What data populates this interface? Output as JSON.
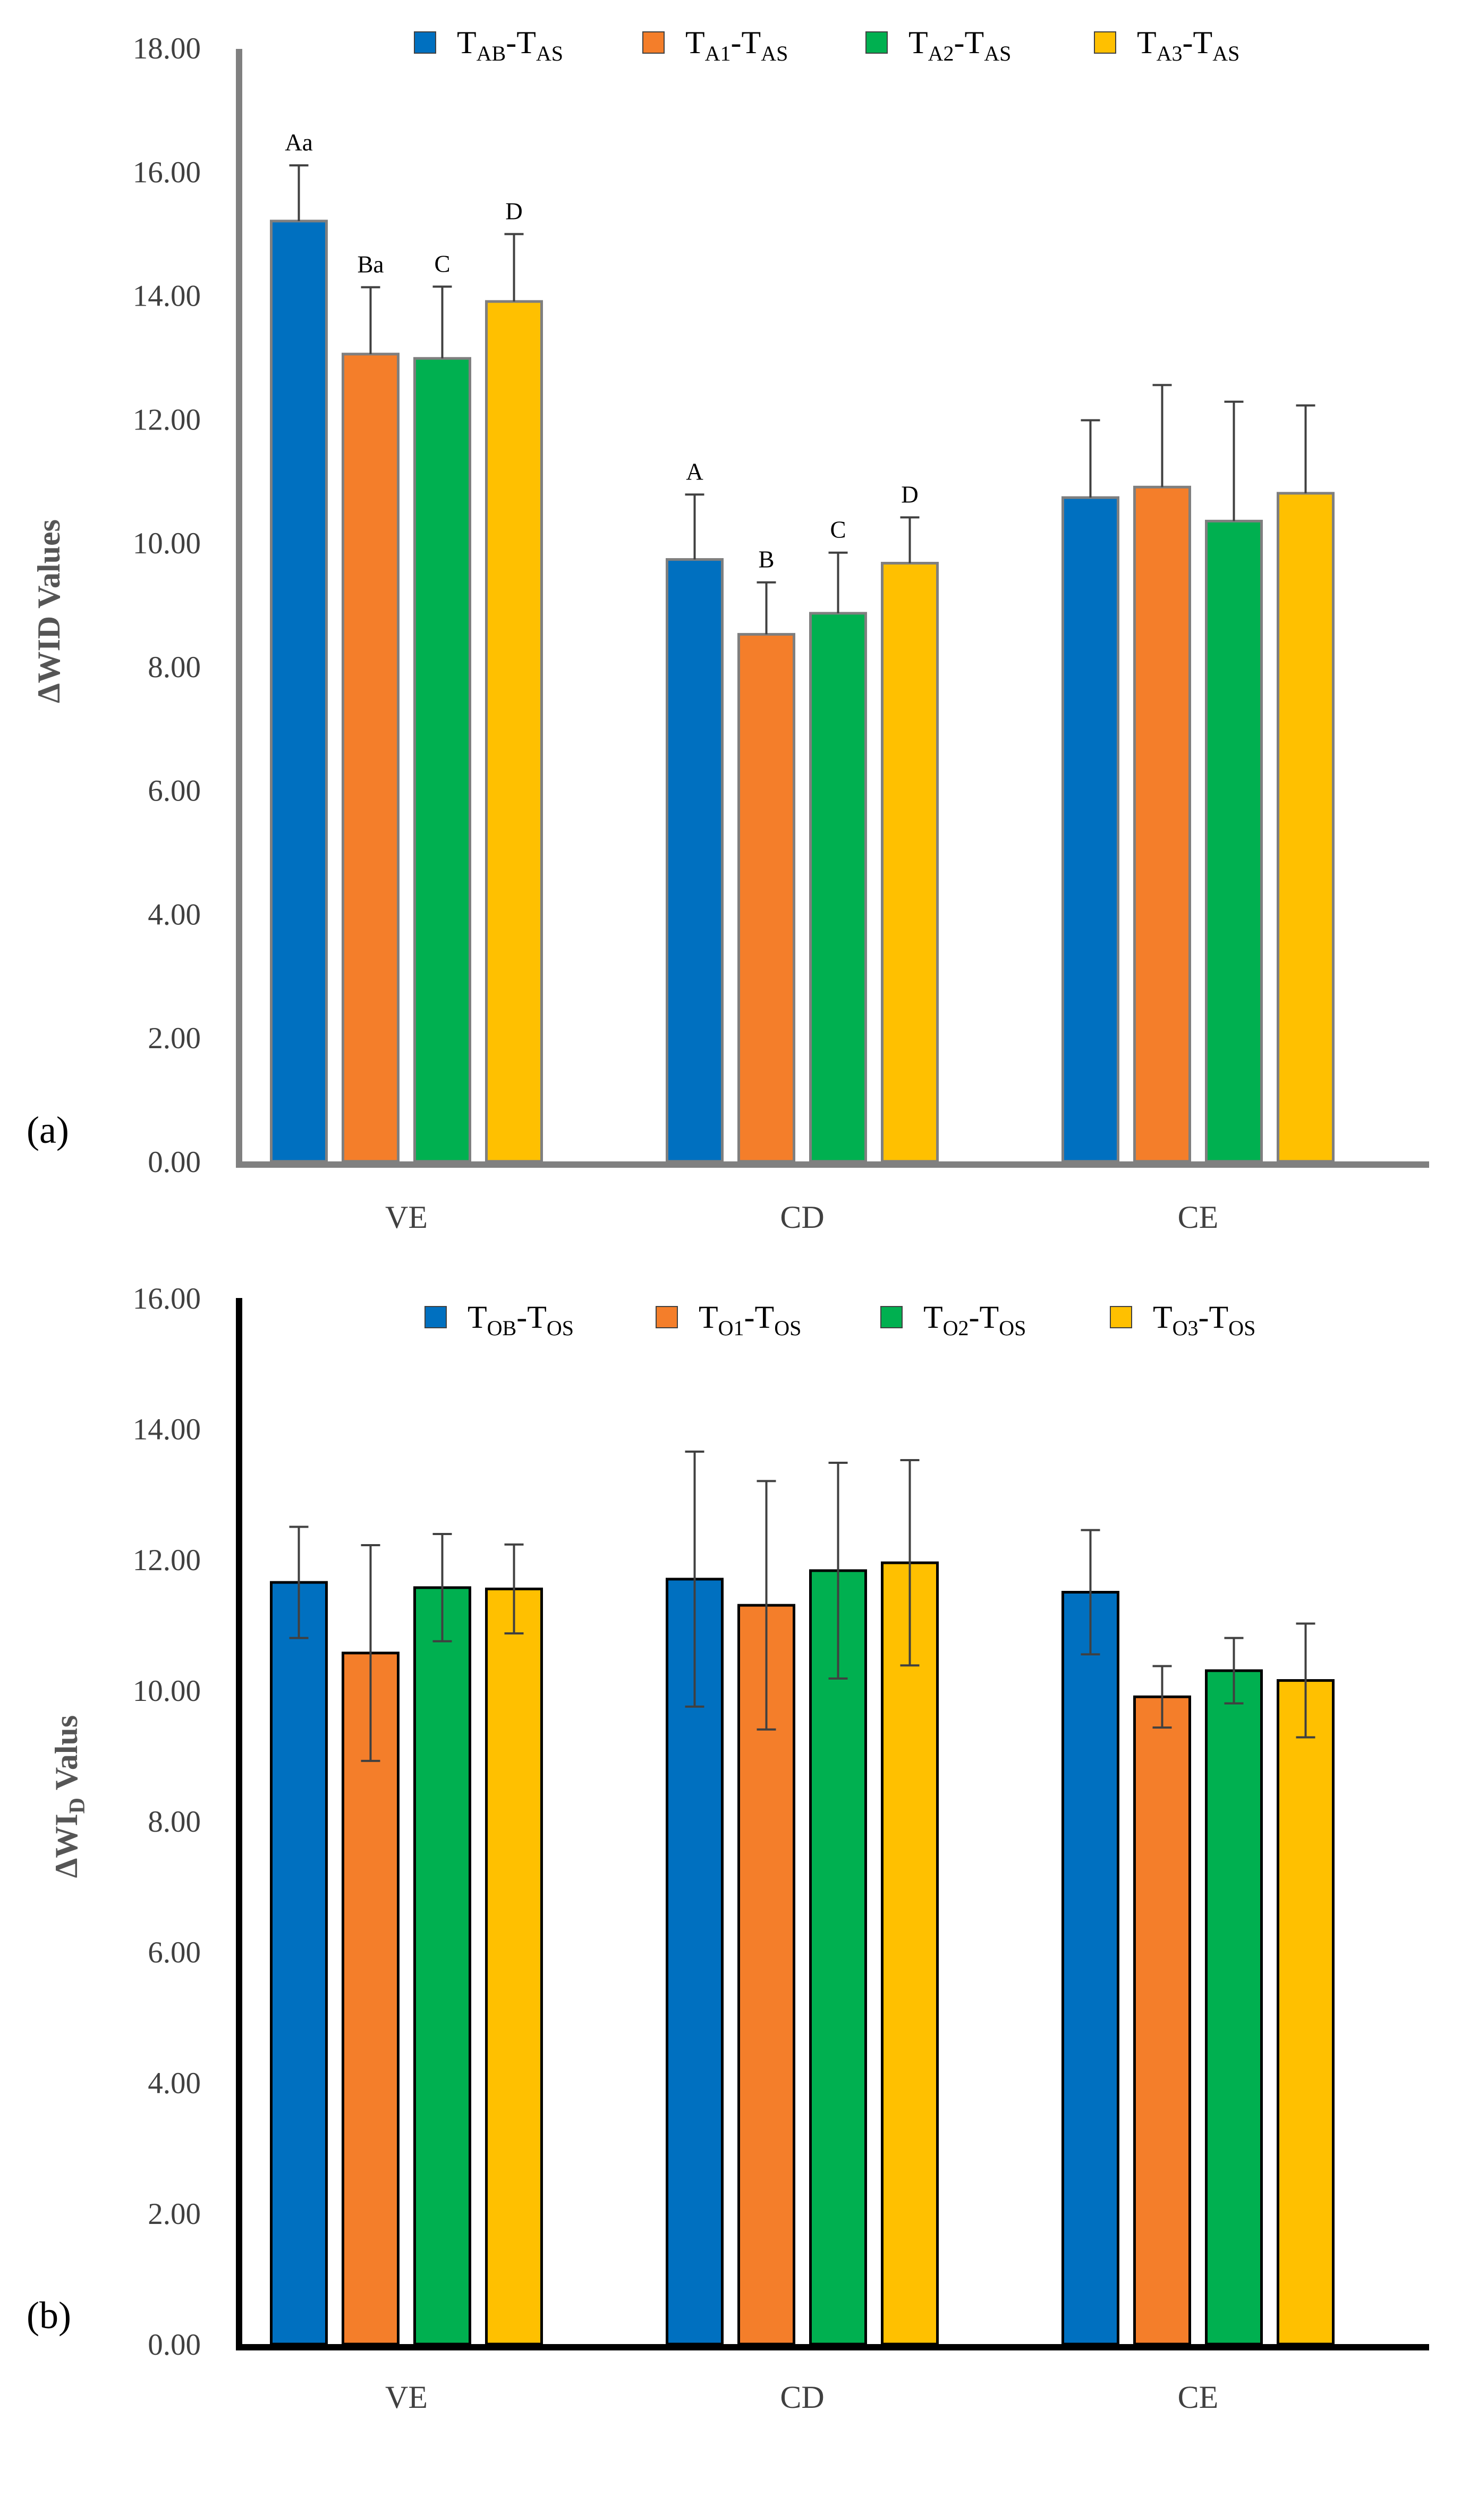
{
  "colors": {
    "blue": "#0070c0",
    "orange": "#f47e2a",
    "green": "#00b050",
    "yellow": "#ffc000"
  },
  "chart_data": [
    {
      "type": "bar",
      "panel_label": "(a)",
      "ylabel": "ΔWID Values",
      "ylim": [
        0,
        18
      ],
      "ytick_step": 2,
      "yticks": [
        "0.00",
        "2.00",
        "4.00",
        "6.00",
        "8.00",
        "10.00",
        "12.00",
        "14.00",
        "16.00",
        "18.00"
      ],
      "categories": [
        "VE",
        "CD",
        "CE"
      ],
      "legend_position": "top-center",
      "series": [
        {
          "name": "TAB-TAS",
          "name_main": "T",
          "name_sub": "AB",
          "name_mid": "-T",
          "name_sub2": "AS",
          "color": "#0070c0",
          "values": [
            15.2,
            9.73,
            10.73
          ],
          "errors": [
            0.9,
            1.05,
            1.25
          ],
          "annotations": [
            "Aa",
            "A",
            ""
          ]
        },
        {
          "name": "TA1-TAS",
          "name_main": "T",
          "name_sub": "A1",
          "name_mid": "-T",
          "name_sub2": "AS",
          "color": "#f47e2a",
          "values": [
            13.05,
            8.52,
            10.9
          ],
          "errors": [
            1.08,
            0.84,
            1.65
          ],
          "annotations": [
            "Ba",
            "B",
            ""
          ]
        },
        {
          "name": "TA2-TAS",
          "name_main": "T",
          "name_sub": "A2",
          "name_mid": "-T",
          "name_sub2": "AS",
          "color": "#00b050",
          "values": [
            12.98,
            8.86,
            10.35
          ],
          "errors": [
            1.16,
            0.98,
            1.93
          ],
          "annotations": [
            "C",
            "C",
            ""
          ]
        },
        {
          "name": "TA3-TAS",
          "name_main": "T",
          "name_sub": "A3",
          "name_mid": "-T",
          "name_sub2": "AS",
          "color": "#ffc000",
          "values": [
            13.9,
            9.67,
            10.8
          ],
          "errors": [
            1.09,
            0.74,
            1.42
          ],
          "annotations": [
            "D",
            "D",
            ""
          ]
        }
      ]
    },
    {
      "type": "bar",
      "panel_label": "(b)",
      "ylabel_main": "ΔWI",
      "ylabel_sub": "D",
      "ylabel_rest": " Valus",
      "ylim": [
        0,
        16
      ],
      "ytick_step": 2,
      "yticks": [
        "0.00",
        "2.00",
        "4.00",
        "6.00",
        "8.00",
        "10.00",
        "12.00",
        "14.00",
        "16.00"
      ],
      "categories": [
        "VE",
        "CD",
        "CE"
      ],
      "legend_position": "top-center",
      "series": [
        {
          "name": "TOB-TOS",
          "name_main": "T",
          "name_sub": "OB",
          "name_mid": "-T",
          "name_sub2": "OS",
          "color": "#0070c0",
          "values": [
            11.65,
            11.7,
            11.5
          ],
          "errors": [
            0.85,
            1.95,
            0.95
          ]
        },
        {
          "name": "TO1-TOS",
          "name_main": "T",
          "name_sub": "O1",
          "name_mid": "-T",
          "name_sub2": "OS",
          "color": "#f47e2a",
          "values": [
            10.57,
            11.3,
            9.9
          ],
          "errors": [
            1.65,
            1.9,
            0.47
          ]
        },
        {
          "name": "TO2-TOS",
          "name_main": "T",
          "name_sub": "O2",
          "name_mid": "-T",
          "name_sub2": "OS",
          "color": "#00b050",
          "values": [
            11.57,
            11.83,
            10.3
          ],
          "errors": [
            0.82,
            1.65,
            0.5
          ]
        },
        {
          "name": "TO3-TOS",
          "name_main": "T",
          "name_sub": "O3",
          "name_mid": "-T",
          "name_sub2": "OS",
          "color": "#ffc000",
          "values": [
            11.55,
            11.95,
            10.15
          ],
          "errors": [
            0.68,
            1.57,
            0.87
          ]
        }
      ]
    }
  ]
}
